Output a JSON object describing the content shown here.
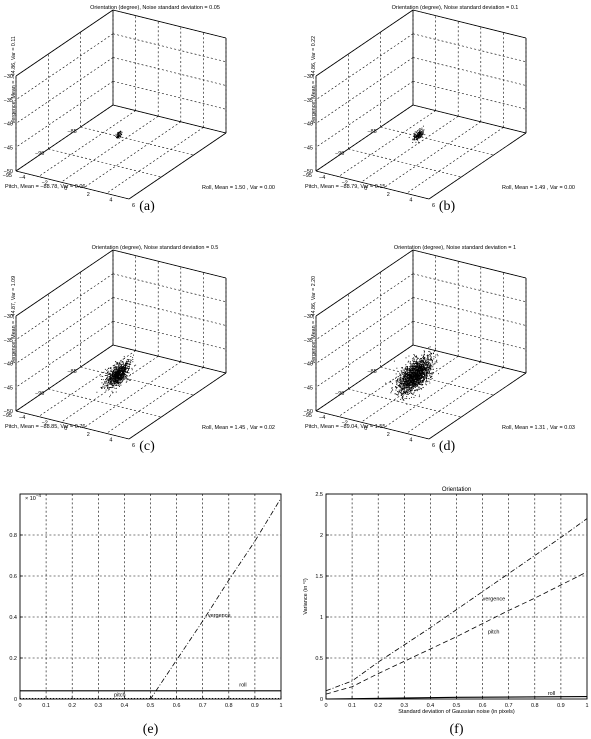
{
  "panels3d": [
    {
      "title": "Orientation (degree), Noise standard deviation = 0.05",
      "zlabel": "Vergence, Mean = −44.86, Var = 0.11",
      "xlabel": "Pitch, Mean = −88.78, Var = 0.06",
      "ylabel": "Roll, Mean = 1.50 , Var = 0.00",
      "caption": "(a)",
      "cloud": {
        "pitch": -88.78,
        "roll": 1.5,
        "vergence": -44.86,
        "sd_pitch": 0.24,
        "sd_roll": 0.05,
        "sd_vergence": 0.33,
        "n": 60
      }
    },
    {
      "title": "Orientation (degree), Noise standard deviation = 0.1",
      "zlabel": "Vergence, Mean = −44.86, Var = 0.22",
      "xlabel": "Pitch, Mean = −88.79, Var = 0.15",
      "ylabel": "Roll, Mean = 1.49 , Var = 0.00",
      "caption": "(b)",
      "cloud": {
        "pitch": -88.79,
        "roll": 1.49,
        "vergence": -44.86,
        "sd_pitch": 0.39,
        "sd_roll": 0.05,
        "sd_vergence": 0.47,
        "n": 160
      }
    },
    {
      "title": "Orientation (degree), Noise standard deviation = 0.5",
      "zlabel": "Vergence, Mean = −44.87, Var = 1.09",
      "xlabel": "Pitch, Mean = −88.85, Var = 0.76",
      "ylabel": "Roll, Mean = 1.45 , Var = 0.02",
      "caption": "(c)",
      "cloud": {
        "pitch": -88.85,
        "roll": 1.45,
        "vergence": -44.87,
        "sd_pitch": 0.87,
        "sd_roll": 0.14,
        "sd_vergence": 1.04,
        "n": 900
      }
    },
    {
      "title": "Orientation (degree), Noise standard deviation = 1",
      "zlabel": "Vergence, Mean = −44.86, Var = 2.20",
      "xlabel": "Pitch, Mean = −89.04, Var = 1.55",
      "ylabel": "Roll, Mean = 1.31 , Var = 0.03",
      "caption": "(d)",
      "cloud": {
        "pitch": -89.04,
        "roll": 1.31,
        "vergence": -44.86,
        "sd_pitch": 1.24,
        "sd_roll": 0.17,
        "sd_vergence": 1.48,
        "n": 1800
      }
    }
  ],
  "axes3d": {
    "pitch_ticks": [
      "−85",
      "−90",
      "−95"
    ],
    "roll_ticks": [
      "−4",
      "−2",
      "0",
      "2",
      "4",
      "6"
    ],
    "vergence_ticks": [
      "−30",
      "−35",
      "−40",
      "−45",
      "−50"
    ]
  },
  "chart_data": [
    {
      "type": "line",
      "caption": "(e)",
      "title": "",
      "xlabel": "",
      "ylabel": "",
      "exponent_label": "× 10",
      "exponent_power": "−4",
      "xlim": [
        0,
        1
      ],
      "ylim": [
        0,
        1
      ],
      "xticks": [
        "0",
        "0.1",
        "0.2",
        "0.3",
        "0.4",
        "0.5",
        "0.6",
        "0.7",
        "0.8",
        "0.9",
        "1"
      ],
      "yticks": [
        "0",
        "0.2",
        "0.4",
        "0.6",
        "0.8"
      ],
      "grid": true,
      "series": [
        {
          "name": "vergence",
          "style": "dashdot",
          "x": [
            0,
            0.5,
            0.6,
            0.7,
            0.8,
            0.9,
            1.0
          ],
          "y": [
            0,
            0,
            0.19,
            0.38,
            0.58,
            0.77,
            0.98
          ]
        },
        {
          "name": "roll",
          "style": "solid",
          "x": [
            0,
            1.0
          ],
          "y": [
            0.04,
            0.04
          ]
        },
        {
          "name": "pitch",
          "style": "dotted",
          "x": [
            0,
            1.0
          ],
          "y": [
            0.003,
            0.003
          ]
        }
      ]
    },
    {
      "type": "line",
      "caption": "(f)",
      "title": "Orientation",
      "xlabel": "Standard deviation of Gaussian noise (in pixels)",
      "ylabel": "Variance (in °²)",
      "xlim": [
        0,
        1
      ],
      "ylim": [
        0,
        2.5
      ],
      "xticks": [
        "0",
        "0.1",
        "0.2",
        "0.3",
        "0.4",
        "0.5",
        "0.6",
        "0.7",
        "0.8",
        "0.9",
        "1"
      ],
      "yticks": [
        "0",
        "0.5",
        "1",
        "1.5",
        "2",
        "2.5"
      ],
      "grid": true,
      "series": [
        {
          "name": "vergence",
          "style": "dashdot",
          "x": [
            0,
            0.1,
            0.2,
            0.3,
            0.4,
            0.5,
            0.6,
            0.7,
            0.8,
            0.9,
            1.0
          ],
          "y": [
            0.1,
            0.22,
            0.45,
            0.66,
            0.87,
            1.09,
            1.31,
            1.53,
            1.75,
            1.97,
            2.2
          ]
        },
        {
          "name": "pitch",
          "style": "dashed",
          "x": [
            0,
            0.1,
            0.2,
            0.3,
            0.4,
            0.5,
            0.6,
            0.7,
            0.8,
            0.9,
            1.0
          ],
          "y": [
            0.06,
            0.15,
            0.31,
            0.46,
            0.61,
            0.76,
            0.92,
            1.08,
            1.23,
            1.39,
            1.55
          ]
        },
        {
          "name": "roll",
          "style": "solid",
          "x": [
            0,
            0.5,
            1.0
          ],
          "y": [
            0.0,
            0.02,
            0.03
          ]
        }
      ]
    }
  ]
}
